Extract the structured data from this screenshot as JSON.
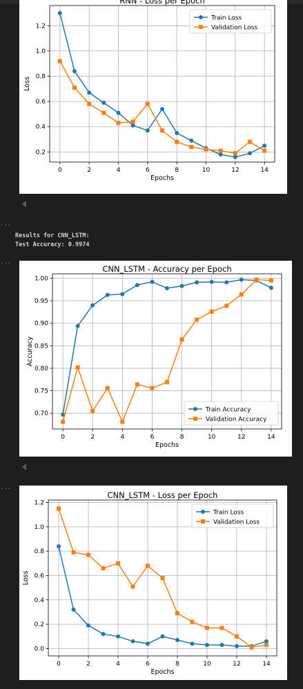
{
  "cells": {
    "output_lines": [
      "Results for CNN_LSTM:",
      "Test Accuracy: 0.9974"
    ],
    "ellipsis": "..."
  },
  "chart_data": [
    {
      "type": "line",
      "title": "RNN - Loss per Epoch",
      "xlabel": "Epochs",
      "ylabel": "Loss",
      "x": [
        0,
        1,
        2,
        3,
        4,
        5,
        6,
        7,
        8,
        9,
        10,
        11,
        12,
        13,
        14
      ],
      "xticks": [
        0,
        2,
        4,
        6,
        8,
        10,
        12,
        14
      ],
      "yticks": [
        0.2,
        0.4,
        0.6,
        0.8,
        1.0,
        1.2
      ],
      "ytick_labels": [
        "0.2",
        "0.4",
        "0.6",
        "0.8",
        "1.0",
        "1.2"
      ],
      "xlim": [
        -0.7,
        14.7
      ],
      "ylim": [
        0.12,
        1.36
      ],
      "grid": true,
      "legend": "upper right",
      "series": [
        {
          "name": "Train Loss",
          "color": "#1f77b4",
          "marker": "circle",
          "values": [
            1.3,
            0.84,
            0.67,
            0.59,
            0.51,
            0.41,
            0.37,
            0.54,
            0.35,
            0.29,
            0.23,
            0.18,
            0.16,
            0.19,
            0.25
          ]
        },
        {
          "name": "Validation Loss",
          "color": "#ff7f0e",
          "marker": "square",
          "values": [
            0.92,
            0.71,
            0.58,
            0.51,
            0.43,
            0.44,
            0.58,
            0.37,
            0.28,
            0.24,
            0.22,
            0.21,
            0.19,
            0.28,
            0.21
          ]
        }
      ]
    },
    {
      "type": "line",
      "title": "CNN_LSTM - Accuracy per Epoch",
      "xlabel": "Epochs",
      "ylabel": "Accuracy",
      "x": [
        0,
        1,
        2,
        3,
        4,
        5,
        6,
        7,
        8,
        9,
        10,
        11,
        12,
        13,
        14
      ],
      "xticks": [
        0,
        2,
        4,
        6,
        8,
        10,
        12,
        14
      ],
      "yticks": [
        0.7,
        0.75,
        0.8,
        0.85,
        0.9,
        0.95,
        1.0
      ],
      "ytick_labels": [
        "0.70",
        "0.75",
        "0.80",
        "0.85",
        "0.90",
        "0.95",
        "1.00"
      ],
      "xlim": [
        -0.7,
        14.7
      ],
      "ylim": [
        0.665,
        1.01
      ],
      "grid": true,
      "legend": "lower right",
      "series": [
        {
          "name": "Train Accuracy",
          "color": "#1f77b4",
          "marker": "circle",
          "values": [
            0.697,
            0.894,
            0.94,
            0.963,
            0.965,
            0.985,
            0.992,
            0.978,
            0.983,
            0.991,
            0.992,
            0.991,
            0.997,
            0.995,
            0.979
          ]
        },
        {
          "name": "Validation Accuracy",
          "color": "#ff7f0e",
          "marker": "square",
          "values": [
            0.681,
            0.802,
            0.705,
            0.756,
            0.681,
            0.764,
            0.756,
            0.769,
            0.864,
            0.908,
            0.926,
            0.939,
            0.964,
            0.997,
            0.995
          ]
        }
      ]
    },
    {
      "type": "line",
      "title": "CNN_LSTM - Loss per Epoch",
      "xlabel": "Epochs",
      "ylabel": "Loss",
      "x": [
        0,
        1,
        2,
        3,
        4,
        5,
        6,
        7,
        8,
        9,
        10,
        11,
        12,
        13,
        14
      ],
      "xticks": [
        0,
        2,
        4,
        6,
        8,
        10,
        12,
        14
      ],
      "yticks": [
        0.0,
        0.2,
        0.4,
        0.6,
        0.8,
        1.0,
        1.2
      ],
      "ytick_labels": [
        "0.0",
        "0.2",
        "0.4",
        "0.6",
        "0.8",
        "1.0",
        "1.2"
      ],
      "xlim": [
        -0.7,
        14.7
      ],
      "ylim": [
        -0.06,
        1.22
      ],
      "grid": true,
      "legend": "upper right",
      "series": [
        {
          "name": "Train Loss",
          "color": "#1f77b4",
          "marker": "circle",
          "values": [
            0.84,
            0.32,
            0.19,
            0.12,
            0.1,
            0.06,
            0.04,
            0.1,
            0.07,
            0.04,
            0.03,
            0.03,
            0.02,
            0.02,
            0.06
          ]
        },
        {
          "name": "Validation Loss",
          "color": "#ff7f0e",
          "marker": "square",
          "values": [
            1.15,
            0.79,
            0.77,
            0.66,
            0.7,
            0.51,
            0.68,
            0.58,
            0.29,
            0.22,
            0.17,
            0.17,
            0.1,
            0.01,
            0.03
          ]
        }
      ]
    }
  ]
}
